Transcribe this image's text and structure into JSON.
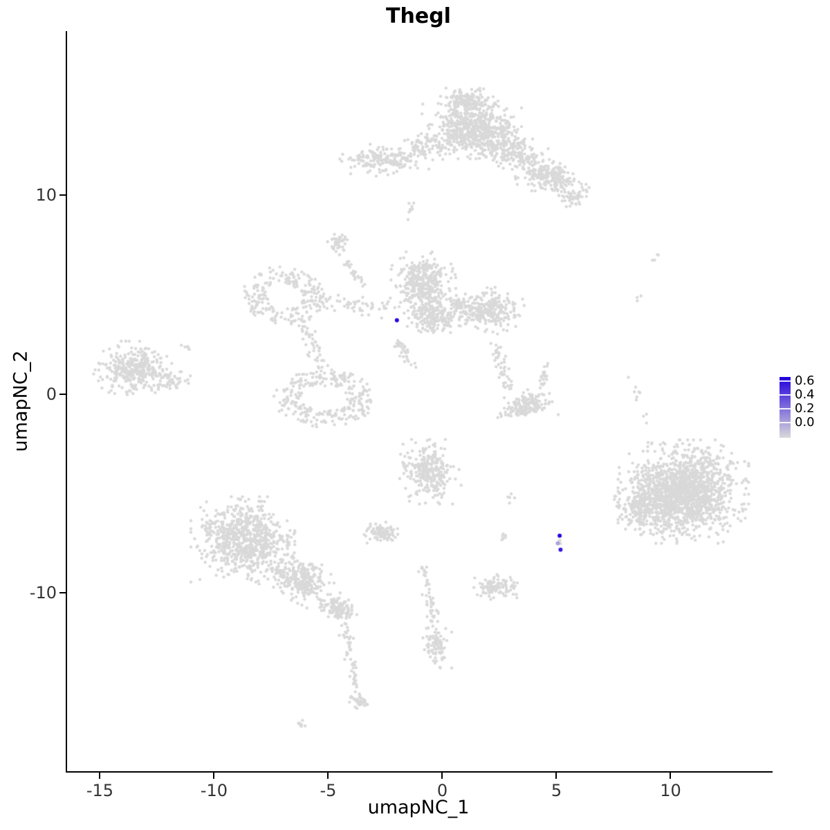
{
  "chart_data": {
    "type": "scatter",
    "title": "Thegl",
    "xlabel": "umapNC_1",
    "ylabel": "umapNC_2",
    "xlim": [
      -16.5,
      14.41
    ],
    "ylim": [
      -18.96,
      18.26
    ],
    "x_ticks": [
      -15,
      -10,
      -5,
      0,
      5,
      10
    ],
    "y_ticks": [
      -10,
      0,
      10
    ],
    "grid": false,
    "legend_position": "right",
    "point_color_low": "#d9d9d9",
    "point_color_high": "#2200dd",
    "color_scale_max": 0.7,
    "point_radius": 2.2,
    "highlight_radius": 3,
    "legend": {
      "ticks": [
        "0.6",
        "0.4",
        "0.2",
        "0.0"
      ],
      "values": [
        0.6,
        0.4,
        0.2,
        0.0
      ]
    },
    "highlighted_points": [
      {
        "x": -2.05,
        "y": 3.72,
        "value": 0.68
      },
      {
        "x": 5.08,
        "y": -7.12,
        "value": 0.7
      },
      {
        "x": 5.12,
        "y": -7.82,
        "value": 0.62
      },
      {
        "x": 5.0,
        "y": -7.5,
        "value": 0.18
      }
    ],
    "clusters": [
      {
        "type": "blob",
        "cx": 1.2,
        "cy": 13.4,
        "rx": 1.7,
        "ry": 1.2,
        "rot": 0,
        "n": 620
      },
      {
        "type": "blob",
        "cx": 1.0,
        "cy": 14.8,
        "rx": 1.0,
        "ry": 0.55,
        "rot": 0,
        "n": 130
      },
      {
        "type": "blob",
        "cx": 2.9,
        "cy": 12.3,
        "rx": 1.2,
        "ry": 0.8,
        "rot": -20,
        "n": 200
      },
      {
        "type": "blob",
        "cx": 4.6,
        "cy": 10.9,
        "rx": 1.4,
        "ry": 0.75,
        "rot": -25,
        "n": 230
      },
      {
        "type": "blob",
        "cx": 5.6,
        "cy": 9.9,
        "rx": 0.5,
        "ry": 0.4,
        "rot": 0,
        "n": 40
      },
      {
        "type": "blob",
        "cx": -2.6,
        "cy": 11.8,
        "rx": 1.5,
        "ry": 0.65,
        "rot": 0,
        "n": 180
      },
      {
        "type": "blob",
        "cx": -0.8,
        "cy": 12.5,
        "rx": 0.7,
        "ry": 0.6,
        "rot": 0,
        "n": 70
      },
      {
        "type": "stream",
        "x1": -1.6,
        "y1": 8.9,
        "x2": -1.3,
        "y2": 9.7,
        "w": 0.12,
        "n": 8
      },
      {
        "type": "blob",
        "cx": -0.9,
        "cy": 5.6,
        "rx": 1.1,
        "ry": 1.2,
        "rot": 0,
        "n": 360
      },
      {
        "type": "blob",
        "cx": -0.5,
        "cy": 3.9,
        "rx": 0.95,
        "ry": 0.7,
        "rot": 0,
        "n": 190
      },
      {
        "type": "blob",
        "cx": 1.9,
        "cy": 4.2,
        "rx": 1.25,
        "ry": 0.9,
        "rot": 0,
        "n": 260
      },
      {
        "type": "stream",
        "x1": 0.3,
        "y1": 4.6,
        "x2": 1.1,
        "y2": 4.3,
        "w": 0.3,
        "n": 40
      },
      {
        "type": "ring",
        "cx": -7.0,
        "cy": 4.9,
        "r": 1.05,
        "rw": 0.8,
        "sx": 1.25,
        "sy": 1.0,
        "n": 210
      },
      {
        "type": "ring",
        "cx": -5.2,
        "cy": -0.2,
        "r": 1.25,
        "rw": 0.9,
        "sx": 1.3,
        "sy": 0.85,
        "n": 270
      },
      {
        "type": "stream",
        "x1": -6.3,
        "y1": 3.7,
        "x2": -5.2,
        "y2": 1.1,
        "w": 0.35,
        "n": 45
      },
      {
        "type": "stream",
        "x1": -5.6,
        "y1": 4.5,
        "x2": -2.3,
        "y2": 4.4,
        "w": 0.45,
        "n": 55
      },
      {
        "type": "blob",
        "cx": -4.6,
        "cy": 7.6,
        "rx": 0.4,
        "ry": 0.55,
        "rot": 0,
        "n": 40
      },
      {
        "type": "stream",
        "x1": -4.4,
        "y1": 6.8,
        "x2": -3.5,
        "y2": 5.5,
        "w": 0.2,
        "n": 25
      },
      {
        "type": "stream",
        "x1": -2.1,
        "y1": 2.7,
        "x2": -1.3,
        "y2": 1.3,
        "w": 0.25,
        "n": 30
      },
      {
        "type": "blob",
        "cx": -13.6,
        "cy": 1.3,
        "rx": 1.4,
        "ry": 1.05,
        "rot": 0,
        "n": 310
      },
      {
        "type": "blob",
        "cx": -12.0,
        "cy": 0.7,
        "rx": 0.7,
        "ry": 0.6,
        "rot": 0,
        "n": 55
      },
      {
        "type": "blob",
        "cx": -11.2,
        "cy": 2.4,
        "rx": 0.3,
        "ry": 0.2,
        "rot": 0,
        "n": 6
      },
      {
        "type": "stream",
        "x1": 2.3,
        "y1": 2.4,
        "x2": 2.8,
        "y2": 0.4,
        "w": 0.3,
        "n": 45
      },
      {
        "type": "blob",
        "cx": 3.6,
        "cy": -0.6,
        "rx": 1.05,
        "ry": 0.6,
        "rot": 15,
        "n": 160
      },
      {
        "type": "stream",
        "x1": 4.3,
        "y1": 0.3,
        "x2": 4.5,
        "y2": 1.4,
        "w": 0.2,
        "n": 22
      },
      {
        "type": "blob",
        "cx": 10.5,
        "cy": -4.9,
        "rx": 2.2,
        "ry": 2.0,
        "rot": 0,
        "n": 1550
      },
      {
        "type": "blob",
        "cx": 8.6,
        "cy": -5.7,
        "rx": 0.95,
        "ry": 1.0,
        "rot": 0,
        "n": 160
      },
      {
        "type": "stream",
        "x1": 8.2,
        "y1": 0.9,
        "x2": 8.9,
        "y2": -1.3,
        "w": 0.18,
        "n": 10
      },
      {
        "type": "blob",
        "cx": 9.3,
        "cy": 6.9,
        "rx": 0.3,
        "ry": 0.3,
        "rot": 0,
        "n": 4
      },
      {
        "type": "blob",
        "cx": 8.6,
        "cy": 4.8,
        "rx": 0.2,
        "ry": 0.2,
        "rot": 0,
        "n": 3
      },
      {
        "type": "blob",
        "cx": -8.8,
        "cy": -7.3,
        "rx": 1.75,
        "ry": 1.65,
        "rot": 0,
        "n": 740
      },
      {
        "type": "blob",
        "cx": -6.3,
        "cy": -9.3,
        "rx": 1.5,
        "ry": 0.85,
        "rot": -30,
        "n": 290
      },
      {
        "type": "blob",
        "cx": -4.6,
        "cy": -10.8,
        "rx": 0.65,
        "ry": 0.5,
        "rot": -20,
        "n": 130
      },
      {
        "type": "stream",
        "x1": -4.4,
        "y1": -11.4,
        "x2": -3.8,
        "y2": -15.0,
        "w": 0.22,
        "n": 50
      },
      {
        "type": "blob",
        "cx": -3.7,
        "cy": -15.5,
        "rx": 0.4,
        "ry": 0.35,
        "rot": 0,
        "n": 40
      },
      {
        "type": "blob",
        "cx": -6.2,
        "cy": -16.6,
        "rx": 0.3,
        "ry": 0.15,
        "rot": 0,
        "n": 8
      },
      {
        "type": "blob",
        "cx": -0.6,
        "cy": -3.9,
        "rx": 1.05,
        "ry": 1.25,
        "rot": 0,
        "n": 290
      },
      {
        "type": "blob",
        "cx": -2.7,
        "cy": -6.9,
        "rx": 0.6,
        "ry": 0.45,
        "rot": 0,
        "n": 90
      },
      {
        "type": "stream",
        "x1": -0.9,
        "y1": -8.6,
        "x2": -0.4,
        "y2": -11.6,
        "w": 0.25,
        "n": 45
      },
      {
        "type": "blob",
        "cx": -0.3,
        "cy": -12.6,
        "rx": 0.5,
        "ry": 0.9,
        "rot": 0,
        "n": 90
      },
      {
        "type": "blob",
        "cx": 2.3,
        "cy": -9.7,
        "rx": 0.8,
        "ry": 0.5,
        "rot": 0,
        "n": 100
      },
      {
        "type": "blob",
        "cx": 2.6,
        "cy": -7.2,
        "rx": 0.3,
        "ry": 0.25,
        "rot": 0,
        "n": 6
      },
      {
        "type": "blob",
        "cx": 2.9,
        "cy": -5.2,
        "rx": 0.2,
        "ry": 0.3,
        "rot": 0,
        "n": 5
      },
      {
        "type": "blob",
        "cx": 5.05,
        "cy": -7.45,
        "rx": 0.08,
        "ry": 0.15,
        "rot": 0,
        "n": 4
      }
    ]
  }
}
